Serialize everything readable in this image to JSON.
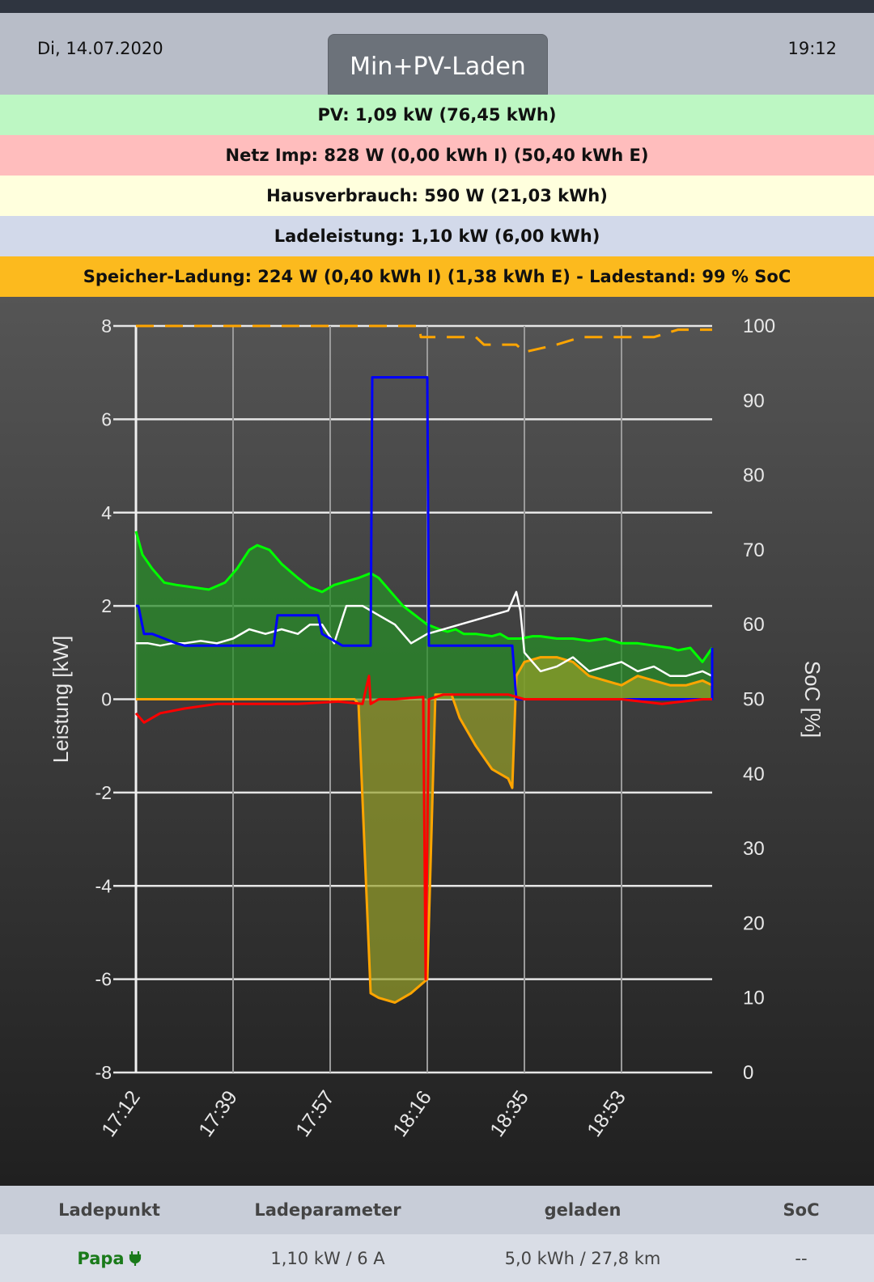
{
  "header": {
    "date": "Di, 14.07.2020",
    "time": "19:12",
    "mode_button": "Min+PV-Laden"
  },
  "rows": {
    "pv": "PV: 1,09 kW (76,45 kWh)",
    "netz": "Netz Imp: 828 W (0,00 kWh I) (50,40 kWh E)",
    "haus": "Hausverbrauch: 590 W (21,03 kWh)",
    "lade": "Ladeleistung: 1,10 kW (6,00 kWh)",
    "speicher": "Speicher-Ladung: 224 W (0,40 kWh I) (1,38 kWh E) - Ladestand: 99 % SoC"
  },
  "colors": {
    "pv": "#00ff00",
    "netz": "#ff0000",
    "haus": "#ffffff",
    "lade": "#0000ff",
    "speicher": "#ffa500",
    "soc": "#ffa500"
  },
  "chart_data": {
    "type": "line",
    "ylabel": "Leistung [kW]",
    "y2label": "SoC [%]",
    "ylim": [
      -8,
      8
    ],
    "y2lim": [
      0,
      100
    ],
    "yticks": [
      "8",
      "6",
      "4",
      "2",
      "0",
      "-2",
      "-4",
      "-6",
      "-8"
    ],
    "y2ticks": [
      "100",
      "90",
      "80",
      "70",
      "60",
      "50",
      "40",
      "30",
      "20",
      "10",
      "0"
    ],
    "xticks": [
      "17:12",
      "17:39",
      "17:57",
      "18:16",
      "18:35",
      "18:53"
    ],
    "grid": true,
    "series": [
      {
        "name": "PV",
        "color": "#00ff00",
        "fill": true,
        "x": [
          0,
          8,
          20,
          35,
          50,
          70,
          90,
          110,
          125,
          140,
          150,
          165,
          180,
          200,
          215,
          230,
          245,
          255,
          275,
          290,
          300,
          315,
          330,
          345,
          360,
          375,
          385,
          395,
          405,
          420,
          440,
          450,
          460,
          475,
          490,
          500,
          520,
          540,
          560,
          580,
          600,
          620,
          640,
          660,
          670,
          685,
          700,
          712
        ],
        "y": [
          3.6,
          3.1,
          2.8,
          2.5,
          2.45,
          2.4,
          2.35,
          2.5,
          2.8,
          3.2,
          3.3,
          3.2,
          2.9,
          2.6,
          2.4,
          2.3,
          2.45,
          2.5,
          2.6,
          2.7,
          2.6,
          2.3,
          2.0,
          1.8,
          1.6,
          1.5,
          1.45,
          1.5,
          1.4,
          1.4,
          1.35,
          1.4,
          1.3,
          1.3,
          1.35,
          1.35,
          1.3,
          1.3,
          1.25,
          1.3,
          1.2,
          1.2,
          1.15,
          1.1,
          1.05,
          1.1,
          0.8,
          1.1
        ]
      },
      {
        "name": "Haus",
        "color": "#ffffff",
        "x": [
          0,
          15,
          30,
          45,
          60,
          80,
          100,
          120,
          140,
          160,
          180,
          200,
          215,
          230,
          245,
          260,
          280,
          300,
          320,
          340,
          360,
          380,
          400,
          420,
          440,
          460,
          470,
          475,
          480,
          490,
          500,
          520,
          540,
          560,
          580,
          600,
          620,
          640,
          660,
          680,
          700,
          712
        ],
        "y": [
          1.2,
          1.2,
          1.15,
          1.2,
          1.2,
          1.25,
          1.2,
          1.3,
          1.5,
          1.4,
          1.5,
          1.4,
          1.6,
          1.6,
          1.2,
          2.0,
          2.0,
          1.8,
          1.6,
          1.2,
          1.4,
          1.5,
          1.6,
          1.7,
          1.8,
          1.9,
          2.3,
          1.9,
          1.0,
          0.8,
          0.6,
          0.7,
          0.9,
          0.6,
          0.7,
          0.8,
          0.6,
          0.7,
          0.5,
          0.5,
          0.6,
          0.5
        ]
      },
      {
        "name": "Ladeleistung",
        "color": "#0000ff",
        "x": [
          0,
          3,
          10,
          20,
          50,
          60,
          100,
          120,
          170,
          175,
          225,
          230,
          255,
          258,
          290,
          292,
          293,
          360,
          362,
          465,
          467,
          470,
          712,
          712
        ],
        "y": [
          2.0,
          2.0,
          1.4,
          1.4,
          1.2,
          1.15,
          1.15,
          1.15,
          1.15,
          1.8,
          1.8,
          1.4,
          1.15,
          1.15,
          1.15,
          6.9,
          6.9,
          6.9,
          1.15,
          1.15,
          0.7,
          0.0,
          0.0,
          1.1
        ]
      },
      {
        "name": "Speicher",
        "color": "#ffa500",
        "fill": true,
        "x": [
          0,
          270,
          275,
          290,
          300,
          320,
          340,
          360,
          370,
          390,
          400,
          420,
          440,
          460,
          465,
          470,
          480,
          500,
          520,
          540,
          560,
          600,
          620,
          640,
          660,
          680,
          700,
          712
        ],
        "y": [
          0,
          0,
          -0.1,
          -6.3,
          -6.4,
          -6.5,
          -6.3,
          -6.0,
          0.1,
          0.1,
          -0.4,
          -1.0,
          -1.5,
          -1.7,
          -1.9,
          0.5,
          0.8,
          0.9,
          0.9,
          0.8,
          0.5,
          0.3,
          0.5,
          0.4,
          0.3,
          0.3,
          0.4,
          0.3
        ]
      },
      {
        "name": "Netz",
        "color": "#ff0000",
        "x": [
          0,
          10,
          30,
          60,
          100,
          150,
          200,
          250,
          280,
          288,
          290,
          300,
          320,
          355,
          358,
          362,
          380,
          420,
          440,
          460,
          480,
          520,
          560,
          600,
          650,
          700,
          712
        ],
        "y": [
          -0.3,
          -0.5,
          -0.3,
          -0.2,
          -0.1,
          -0.1,
          -0.1,
          -0.05,
          -0.1,
          0.5,
          -0.1,
          0.0,
          0.0,
          0.05,
          -6.0,
          0.0,
          0.1,
          0.1,
          0.1,
          0.1,
          0.0,
          0.0,
          0.0,
          0.0,
          -0.1,
          0.0,
          0.0
        ]
      },
      {
        "name": "SoC",
        "color": "#ffa500",
        "dashed": true,
        "axis": "y2",
        "x": [
          0,
          350,
          352,
          420,
          430,
          470,
          480,
          520,
          550,
          570,
          640,
          670,
          712
        ],
        "y": [
          100,
          100,
          98.5,
          98.5,
          97.5,
          97.5,
          96.5,
          97.5,
          98.5,
          98.5,
          98.5,
          99.5,
          99.5
        ]
      }
    ]
  },
  "footer": {
    "headers": [
      "Ladepunkt",
      "Ladeparameter",
      "geladen",
      "SoC"
    ],
    "row": {
      "name": "Papa",
      "icon": "plug-icon",
      "params": "1,10 kW / 6 A",
      "charged": "5,0 kWh / 27,8 km",
      "soc": "--"
    }
  }
}
